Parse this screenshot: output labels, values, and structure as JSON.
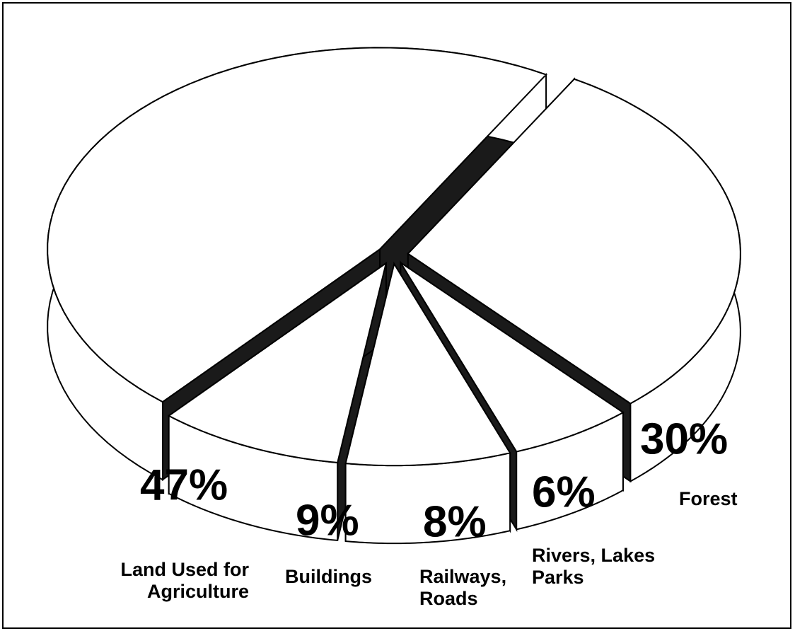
{
  "chart_data": {
    "type": "pie",
    "categories": [
      "Forest",
      "Rivers, Lakes Parks",
      "Railways, Roads",
      "Buildings",
      "Land Used for Agriculture"
    ],
    "values": [
      30,
      6,
      8,
      9,
      47
    ],
    "value_labels": [
      "30%",
      "6%",
      "8%",
      "9%",
      "47%"
    ],
    "color": "#ffffff",
    "edge_color": "#000000",
    "wall_color": "#1a1a1a"
  }
}
